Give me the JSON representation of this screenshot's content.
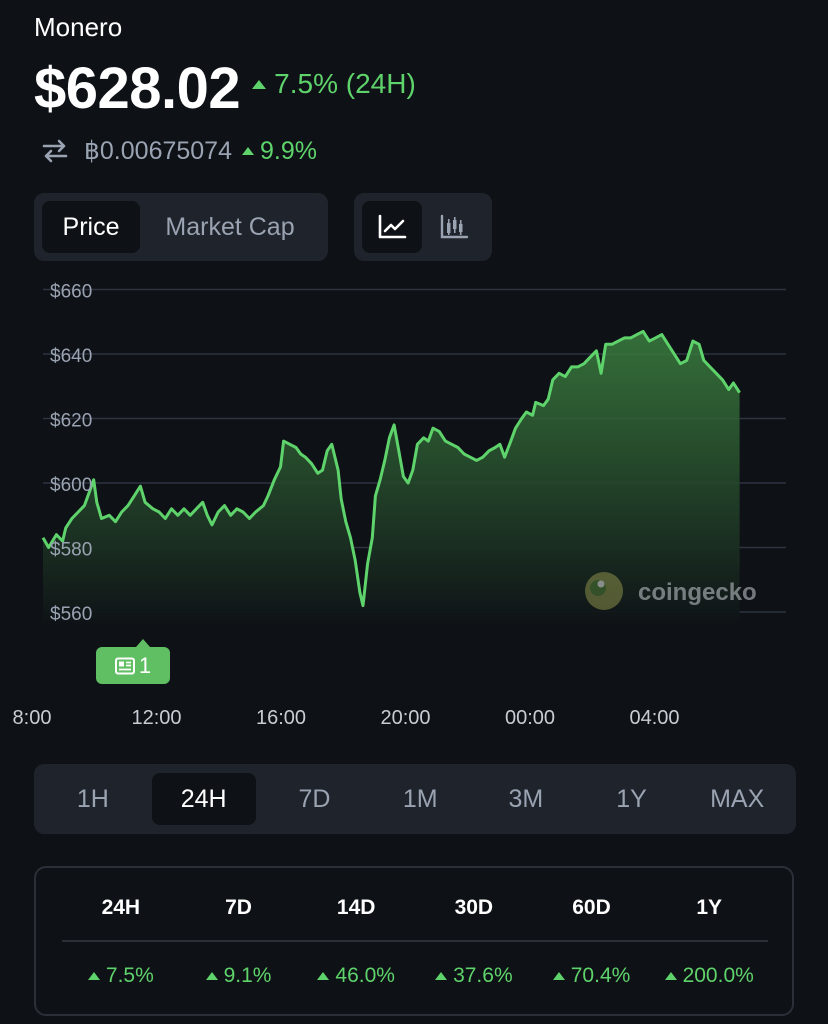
{
  "header": {
    "coin_name": "Monero",
    "price": "$628.02",
    "change_24h": "7.5% (24H)",
    "btc_price": "฿0.00675074",
    "btc_change": "9.9%"
  },
  "toggles": {
    "price_label": "Price",
    "market_cap_label": "Market Cap",
    "active": "Price",
    "chart_type_active": "line"
  },
  "news_badge": {
    "count": "1"
  },
  "watermark": "coingecko",
  "chart_data": {
    "type": "area",
    "ylim": [
      553,
      662
    ],
    "y_ticks": [
      {
        "value": 560,
        "label": "$560"
      },
      {
        "value": 580,
        "label": "$580"
      },
      {
        "value": 600,
        "label": "$600"
      },
      {
        "value": 620,
        "label": "$620"
      },
      {
        "value": 640,
        "label": "$640"
      },
      {
        "value": 660,
        "label": "$660"
      }
    ],
    "x_ticks": [
      {
        "t": 0,
        "label": "8:00"
      },
      {
        "t": 4,
        "label": "12:00"
      },
      {
        "t": 8,
        "label": "16:00"
      },
      {
        "t": 12,
        "label": "20:00"
      },
      {
        "t": 16,
        "label": "00:00"
      },
      {
        "t": 20,
        "label": "04:00"
      }
    ],
    "x_range": [
      0.37,
      23.6
    ],
    "line_color": "#5fd36b",
    "series": [
      {
        "points": [
          [
            0.37,
            583
          ],
          [
            0.55,
            580
          ],
          [
            0.8,
            584
          ],
          [
            1.0,
            582
          ],
          [
            1.1,
            586
          ],
          [
            1.3,
            589
          ],
          [
            1.5,
            591
          ],
          [
            1.7,
            593
          ],
          [
            1.85,
            597
          ],
          [
            2.0,
            601
          ],
          [
            2.1,
            594
          ],
          [
            2.25,
            589
          ],
          [
            2.5,
            590
          ],
          [
            2.7,
            588
          ],
          [
            2.9,
            591
          ],
          [
            3.1,
            593
          ],
          [
            3.3,
            596
          ],
          [
            3.5,
            599
          ],
          [
            3.65,
            594
          ],
          [
            3.9,
            592
          ],
          [
            4.1,
            591
          ],
          [
            4.3,
            589
          ],
          [
            4.5,
            592
          ],
          [
            4.7,
            590
          ],
          [
            4.9,
            592
          ],
          [
            5.1,
            590
          ],
          [
            5.3,
            592
          ],
          [
            5.5,
            594
          ],
          [
            5.65,
            590
          ],
          [
            5.8,
            587
          ],
          [
            6.0,
            591
          ],
          [
            6.2,
            593
          ],
          [
            6.4,
            590
          ],
          [
            6.6,
            592
          ],
          [
            6.8,
            591
          ],
          [
            7.0,
            589
          ],
          [
            7.2,
            591
          ],
          [
            7.45,
            593
          ],
          [
            7.6,
            596
          ],
          [
            7.8,
            601
          ],
          [
            8.0,
            605
          ],
          [
            8.1,
            613
          ],
          [
            8.3,
            612
          ],
          [
            8.5,
            611
          ],
          [
            8.65,
            609
          ],
          [
            8.8,
            608
          ],
          [
            9.0,
            606
          ],
          [
            9.2,
            603
          ],
          [
            9.35,
            604
          ],
          [
            9.5,
            610
          ],
          [
            9.65,
            612
          ],
          [
            9.85,
            604
          ],
          [
            9.95,
            595
          ],
          [
            10.1,
            588
          ],
          [
            10.25,
            583
          ],
          [
            10.4,
            576
          ],
          [
            10.55,
            566
          ],
          [
            10.65,
            562
          ],
          [
            10.8,
            575
          ],
          [
            10.95,
            583
          ],
          [
            11.05,
            596
          ],
          [
            11.2,
            601
          ],
          [
            11.35,
            607
          ],
          [
            11.5,
            614
          ],
          [
            11.65,
            618
          ],
          [
            11.8,
            610
          ],
          [
            11.95,
            602
          ],
          [
            12.1,
            600
          ],
          [
            12.25,
            604
          ],
          [
            12.4,
            612
          ],
          [
            12.6,
            614
          ],
          [
            12.75,
            613
          ],
          [
            12.9,
            617
          ],
          [
            13.1,
            616
          ],
          [
            13.3,
            613
          ],
          [
            13.5,
            612
          ],
          [
            13.7,
            611
          ],
          [
            13.9,
            609
          ],
          [
            14.1,
            608
          ],
          [
            14.3,
            607
          ],
          [
            14.5,
            608
          ],
          [
            14.7,
            610
          ],
          [
            14.9,
            611
          ],
          [
            15.05,
            612
          ],
          [
            15.2,
            608
          ],
          [
            15.4,
            613
          ],
          [
            15.55,
            617
          ],
          [
            15.75,
            620
          ],
          [
            15.9,
            622
          ],
          [
            16.1,
            621
          ],
          [
            16.2,
            625
          ],
          [
            16.45,
            624
          ],
          [
            16.6,
            626
          ],
          [
            16.75,
            632
          ],
          [
            16.95,
            634
          ],
          [
            17.15,
            633
          ],
          [
            17.35,
            636
          ],
          [
            17.55,
            636
          ],
          [
            17.75,
            637
          ],
          [
            17.95,
            639
          ],
          [
            18.15,
            641
          ],
          [
            18.3,
            634
          ],
          [
            18.45,
            643
          ],
          [
            18.65,
            643
          ],
          [
            18.85,
            644
          ],
          [
            19.05,
            645
          ],
          [
            19.25,
            645
          ],
          [
            19.45,
            646
          ],
          [
            19.65,
            647
          ],
          [
            19.85,
            644
          ],
          [
            20.05,
            645
          ],
          [
            20.25,
            646
          ],
          [
            20.45,
            643
          ],
          [
            20.65,
            640
          ],
          [
            20.85,
            637
          ],
          [
            21.05,
            638
          ],
          [
            21.25,
            644
          ],
          [
            21.45,
            643
          ],
          [
            21.6,
            638
          ],
          [
            21.8,
            636
          ],
          [
            22.0,
            634
          ],
          [
            22.2,
            632
          ],
          [
            22.4,
            629
          ],
          [
            22.55,
            631
          ],
          [
            22.75,
            628
          ]
        ]
      }
    ]
  },
  "time_ranges": {
    "items": [
      "1H",
      "24H",
      "7D",
      "1M",
      "3M",
      "1Y",
      "MAX"
    ],
    "active": "24H"
  },
  "performance": {
    "headers": [
      "24H",
      "7D",
      "14D",
      "30D",
      "60D",
      "1Y"
    ],
    "values": [
      "7.5%",
      "9.1%",
      "46.0%",
      "37.6%",
      "70.4%",
      "200.0%"
    ]
  }
}
